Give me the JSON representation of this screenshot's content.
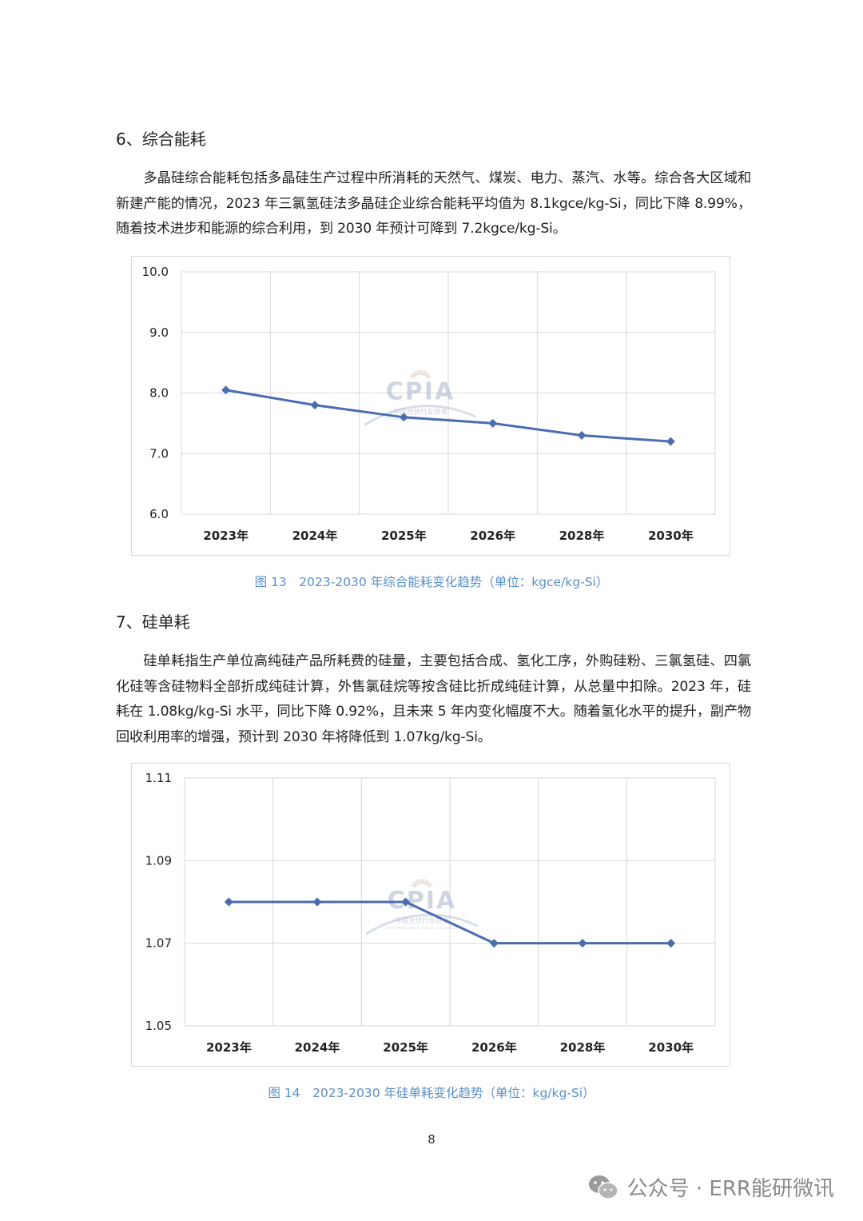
{
  "section6": {
    "heading": "6、综合能耗",
    "paragraph": "多晶硅综合能耗包括多晶硅生产过程中所消耗的天然气、煤炭、电力、蒸汽、水等。综合各大区域和新建产能的情况，2023 年三氯氢硅法多晶硅企业综合能耗平均值为 8.1kgce/kg-Si，同比下降 8.99%，随着技术进步和能源的综合利用，到 2030 年预计可降到 7.2kgce/kg-Si。",
    "caption": "图 13　2023-2030 年综合能耗变化趋势（单位：kgce/kg-Si）"
  },
  "section7": {
    "heading": "7、硅单耗",
    "paragraph": "硅单耗指生产单位高纯硅产品所耗费的硅量，主要包括合成、氢化工序，外购硅粉、三氯氢硅、四氯化硅等含硅物料全部折成纯硅计算，外售氯硅烷等按含硅比折成纯硅计算，从总量中扣除。2023 年，硅耗在 1.08kg/kg-Si 水平，同比下降 0.92%，且未来 5 年内变化幅度不大。随着氢化水平的提升，副产物回收利用率的增强，预计到 2030 年将降低到 1.07kg/kg-Si。",
    "caption": "图 14　2023-2030 年硅单耗变化趋势（单位：kg/kg-Si）"
  },
  "chart_data": [
    {
      "type": "line",
      "title": "",
      "categories": [
        "2023年",
        "2024年",
        "2025年",
        "2026年",
        "2028年",
        "2030年"
      ],
      "series": [
        {
          "values": [
            8.05,
            7.8,
            7.6,
            7.5,
            7.3,
            7.2
          ]
        }
      ],
      "ylim": [
        6.0,
        10.0
      ],
      "yticks": [
        "6.0",
        "7.0",
        "8.0",
        "9.0",
        "10.0"
      ],
      "grid": true,
      "line_color": "#4a6db0",
      "watermark": {
        "main": "CPIA",
        "sub": "中国光伏行业协会",
        "sub2": "China Photovoltaic Industry Association"
      }
    },
    {
      "type": "line",
      "title": "",
      "categories": [
        "2023年",
        "2024年",
        "2025年",
        "2026年",
        "2028年",
        "2030年"
      ],
      "series": [
        {
          "values": [
            1.08,
            1.08,
            1.08,
            1.07,
            1.07,
            1.07
          ]
        }
      ],
      "ylim": [
        1.05,
        1.11
      ],
      "yticks": [
        "1.05",
        "1.07",
        "1.09",
        "1.11"
      ],
      "grid": true,
      "line_color": "#4a6db0",
      "watermark": {
        "main": "CPIA",
        "sub": "中国光伏行业协会",
        "sub2": "China Photovoltaic Industry Association"
      }
    }
  ],
  "page_number": "8",
  "footer_watermark": "公众号 · ERR能研微讯"
}
